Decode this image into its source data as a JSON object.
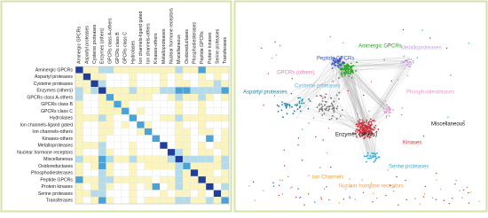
{
  "chart_data": {
    "type": "heatmap",
    "rows": [
      "Aminergic GPCRs",
      "Aspartyl proteases",
      "Cysteine proteases",
      "Enzymes (others)",
      "GPCRs class A-others",
      "GPCRs class B",
      "GPCRs class C",
      "Hydrolases",
      "Ion channels-ligand gated",
      "Ion channels-others",
      "Kinases-others",
      "Metalloproteases",
      "Nuclear hormone receptors",
      "Miscellaneous",
      "Oxidoreductases",
      "Phosphodiesterases",
      "Peptide GPCRs",
      "Protein kinases",
      "Serine proteases",
      "Transferases"
    ],
    "columns": [
      "Aminergic GPCRs",
      "Aspartyl proteases",
      "Cysteine proteases",
      "Enzymes (others)",
      "GPCRs class A-others",
      "GPCRs class B",
      "GPCRs class C",
      "Hydrolases",
      "Ion channels-ligand gated",
      "Ion channels-others",
      "Kinases-others",
      "Metalloproteases",
      "Nuclear hormone receptors",
      "Miscellaneous",
      "Oxidoreductases",
      "Phosphodiesterases",
      "Peptide GPCRs",
      "Protein kinases",
      "Serine proteases",
      "Transferases"
    ],
    "z": [
      [
        4,
        1,
        1,
        2,
        2,
        1,
        1,
        1,
        1,
        1,
        1,
        1,
        1,
        2,
        1,
        1,
        3,
        1,
        1,
        1
      ],
      [
        1,
        4,
        1,
        1,
        0,
        0,
        0,
        1,
        0,
        0,
        0,
        1,
        0,
        1,
        0,
        0,
        1,
        0,
        1,
        0
      ],
      [
        1,
        1,
        4,
        2,
        0,
        0,
        0,
        1,
        0,
        0,
        0,
        1,
        0,
        1,
        1,
        0,
        1,
        1,
        2,
        1
      ],
      [
        2,
        1,
        2,
        4,
        1,
        1,
        1,
        2,
        1,
        1,
        1,
        2,
        2,
        3,
        3,
        2,
        2,
        2,
        2,
        3
      ],
      [
        2,
        0,
        0,
        1,
        3,
        1,
        1,
        1,
        1,
        1,
        0,
        0,
        1,
        2,
        1,
        1,
        2,
        1,
        0,
        1
      ],
      [
        1,
        0,
        0,
        1,
        1,
        3,
        1,
        0,
        0,
        0,
        0,
        0,
        0,
        1,
        0,
        0,
        1,
        0,
        0,
        0
      ],
      [
        1,
        0,
        0,
        1,
        1,
        1,
        3,
        0,
        1,
        0,
        0,
        0,
        0,
        1,
        0,
        0,
        1,
        0,
        0,
        0
      ],
      [
        1,
        1,
        1,
        2,
        1,
        0,
        0,
        3,
        0,
        0,
        0,
        1,
        1,
        2,
        1,
        1,
        1,
        1,
        1,
        1
      ],
      [
        1,
        0,
        0,
        1,
        1,
        0,
        1,
        0,
        3,
        1,
        0,
        0,
        0,
        1,
        0,
        0,
        1,
        0,
        0,
        0
      ],
      [
        1,
        0,
        0,
        1,
        1,
        0,
        0,
        0,
        1,
        3,
        0,
        0,
        0,
        1,
        1,
        0,
        1,
        1,
        0,
        1
      ],
      [
        1,
        0,
        0,
        1,
        0,
        0,
        0,
        0,
        0,
        0,
        3,
        0,
        0,
        1,
        1,
        0,
        0,
        3,
        0,
        1
      ],
      [
        1,
        1,
        1,
        2,
        0,
        0,
        0,
        1,
        0,
        0,
        0,
        4,
        0,
        1,
        1,
        0,
        1,
        0,
        1,
        1
      ],
      [
        1,
        0,
        0,
        2,
        1,
        0,
        0,
        1,
        0,
        0,
        0,
        0,
        4,
        2,
        1,
        0,
        1,
        1,
        0,
        1
      ],
      [
        2,
        1,
        1,
        3,
        2,
        1,
        1,
        2,
        1,
        1,
        1,
        1,
        2,
        4,
        2,
        2,
        2,
        2,
        1,
        2
      ],
      [
        1,
        0,
        1,
        3,
        1,
        0,
        0,
        1,
        0,
        1,
        1,
        1,
        1,
        2,
        3,
        1,
        1,
        1,
        1,
        2
      ],
      [
        1,
        0,
        0,
        2,
        1,
        0,
        0,
        1,
        0,
        0,
        0,
        0,
        0,
        2,
        1,
        4,
        1,
        1,
        0,
        1
      ],
      [
        3,
        1,
        1,
        2,
        2,
        1,
        1,
        1,
        1,
        1,
        0,
        1,
        1,
        2,
        1,
        1,
        4,
        1,
        1,
        1
      ],
      [
        1,
        0,
        1,
        2,
        1,
        0,
        0,
        1,
        0,
        1,
        3,
        0,
        1,
        2,
        1,
        1,
        1,
        4,
        0,
        2
      ],
      [
        1,
        1,
        2,
        2,
        0,
        0,
        0,
        1,
        0,
        0,
        0,
        1,
        0,
        1,
        1,
        0,
        1,
        0,
        4,
        1
      ],
      [
        1,
        0,
        1,
        3,
        1,
        0,
        0,
        1,
        0,
        1,
        1,
        1,
        1,
        2,
        2,
        1,
        1,
        2,
        1,
        3
      ]
    ],
    "colors": [
      "#ffffff",
      "#fbf4bd",
      "#b3dbea",
      "#4aa3d6",
      "#1f3f9a"
    ]
  },
  "network": {
    "labels": [
      {
        "text": "Aminergic GPCRs",
        "color": "#2da52d"
      },
      {
        "text": "Metalloproteases",
        "color": "#c4a3e6"
      },
      {
        "text": "Peptide GPCRs",
        "color": "#3555c4"
      },
      {
        "text": "GPCRs (others)",
        "color": "#e67aae"
      },
      {
        "text": "Cysteine proteases",
        "color": "#5bb5e6"
      },
      {
        "text": "Phosphodiesterases",
        "color": "#e49bcf"
      },
      {
        "text": "Aspartyl proteases",
        "color": "#1f7f9a"
      },
      {
        "text": "Enzymes (others)",
        "color": "#111111"
      },
      {
        "text": "Miscellaneous",
        "color": "#111111"
      },
      {
        "text": "Kinases",
        "color": "#d0303a"
      },
      {
        "text": "Serine proteases",
        "color": "#30b0d8"
      },
      {
        "text": "Ion Channels",
        "color": "#f0a020"
      },
      {
        "text": "Nuclear hormone receptors",
        "color": "#eea060"
      }
    ]
  }
}
